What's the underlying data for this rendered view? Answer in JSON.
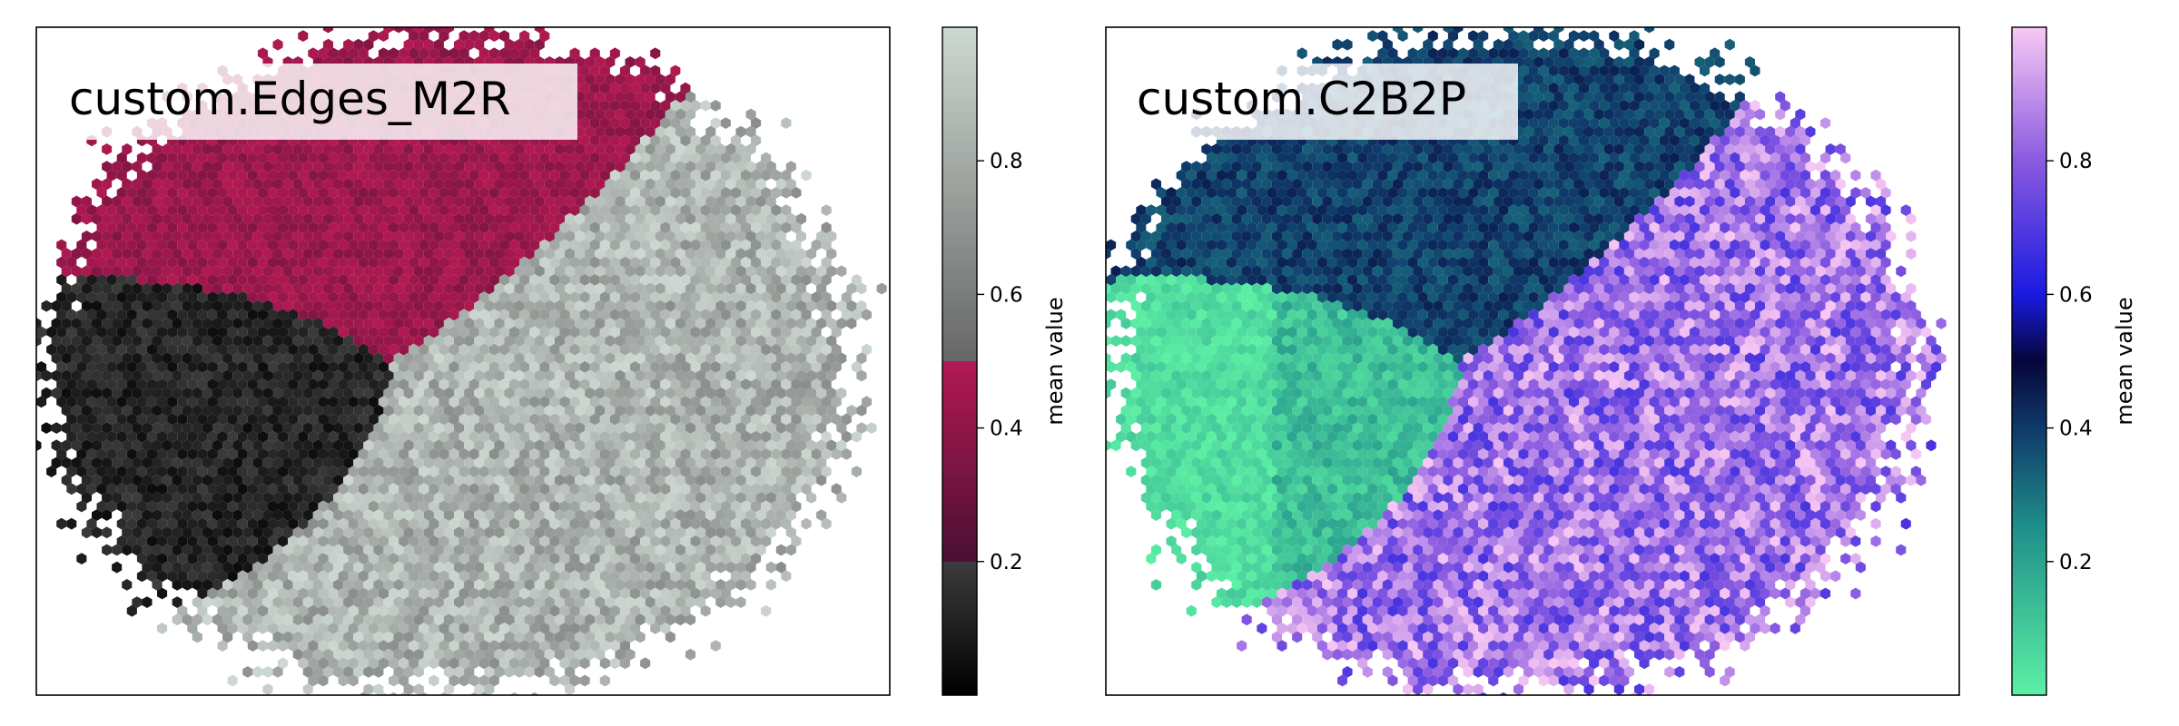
{
  "chart_data": [
    {
      "type": "heatmap",
      "subtype": "hexbin",
      "title": "custom.Edges_M2R",
      "xlabel": "",
      "ylabel": "",
      "axis_ticks_visible": false,
      "grid": false,
      "colormap": {
        "name": "custom.Edges_M2R",
        "stops": [
          {
            "v": 0.0,
            "color": "#000000"
          },
          {
            "v": 0.2,
            "color": "#3c3c3c"
          },
          {
            "v": 0.2,
            "color": "#4a0f33"
          },
          {
            "v": 0.5,
            "color": "#b21a52"
          },
          {
            "v": 0.5,
            "color": "#666666"
          },
          {
            "v": 1.0,
            "color": "#ced8d2"
          }
        ]
      },
      "colorbar": {
        "label": "mean value",
        "range": [
          0,
          1
        ],
        "ticks": [
          0.2,
          0.4,
          0.6,
          0.8
        ],
        "tick_labels": [
          "0.2",
          "0.4",
          "0.6",
          "0.8"
        ]
      },
      "regions": [
        {
          "name": "upper cluster",
          "value_range": [
            0.2,
            0.5
          ]
        },
        {
          "name": "left cluster",
          "value_range": [
            0.0,
            0.2
          ]
        },
        {
          "name": "lower-right cluster",
          "value_range": [
            0.5,
            1.0
          ]
        }
      ]
    },
    {
      "type": "heatmap",
      "subtype": "hexbin",
      "title": "custom.C2B2P",
      "xlabel": "",
      "ylabel": "",
      "axis_ticks_visible": false,
      "grid": false,
      "colormap": {
        "name": "custom.C2B2P",
        "stops": [
          {
            "v": 0.0,
            "color": "#5cf0a4"
          },
          {
            "v": 0.25,
            "color": "#1f8f8a"
          },
          {
            "v": 0.4,
            "color": "#0f3a6a"
          },
          {
            "v": 0.5,
            "color": "#06063a"
          },
          {
            "v": 0.6,
            "color": "#1a1ae0"
          },
          {
            "v": 0.8,
            "color": "#8a5ae0"
          },
          {
            "v": 1.0,
            "color": "#f8c8f4"
          }
        ]
      },
      "colorbar": {
        "label": "mean value",
        "range": [
          0,
          1
        ],
        "ticks": [
          0.2,
          0.4,
          0.6,
          0.8
        ],
        "tick_labels": [
          "0.2",
          "0.4",
          "0.6",
          "0.8"
        ]
      },
      "regions": [
        {
          "name": "upper cluster",
          "value_range": [
            0.3,
            0.45
          ]
        },
        {
          "name": "left cluster",
          "value_range": [
            0.0,
            0.2
          ]
        },
        {
          "name": "lower-right cluster",
          "value_range": [
            0.6,
            1.0
          ]
        }
      ]
    }
  ]
}
